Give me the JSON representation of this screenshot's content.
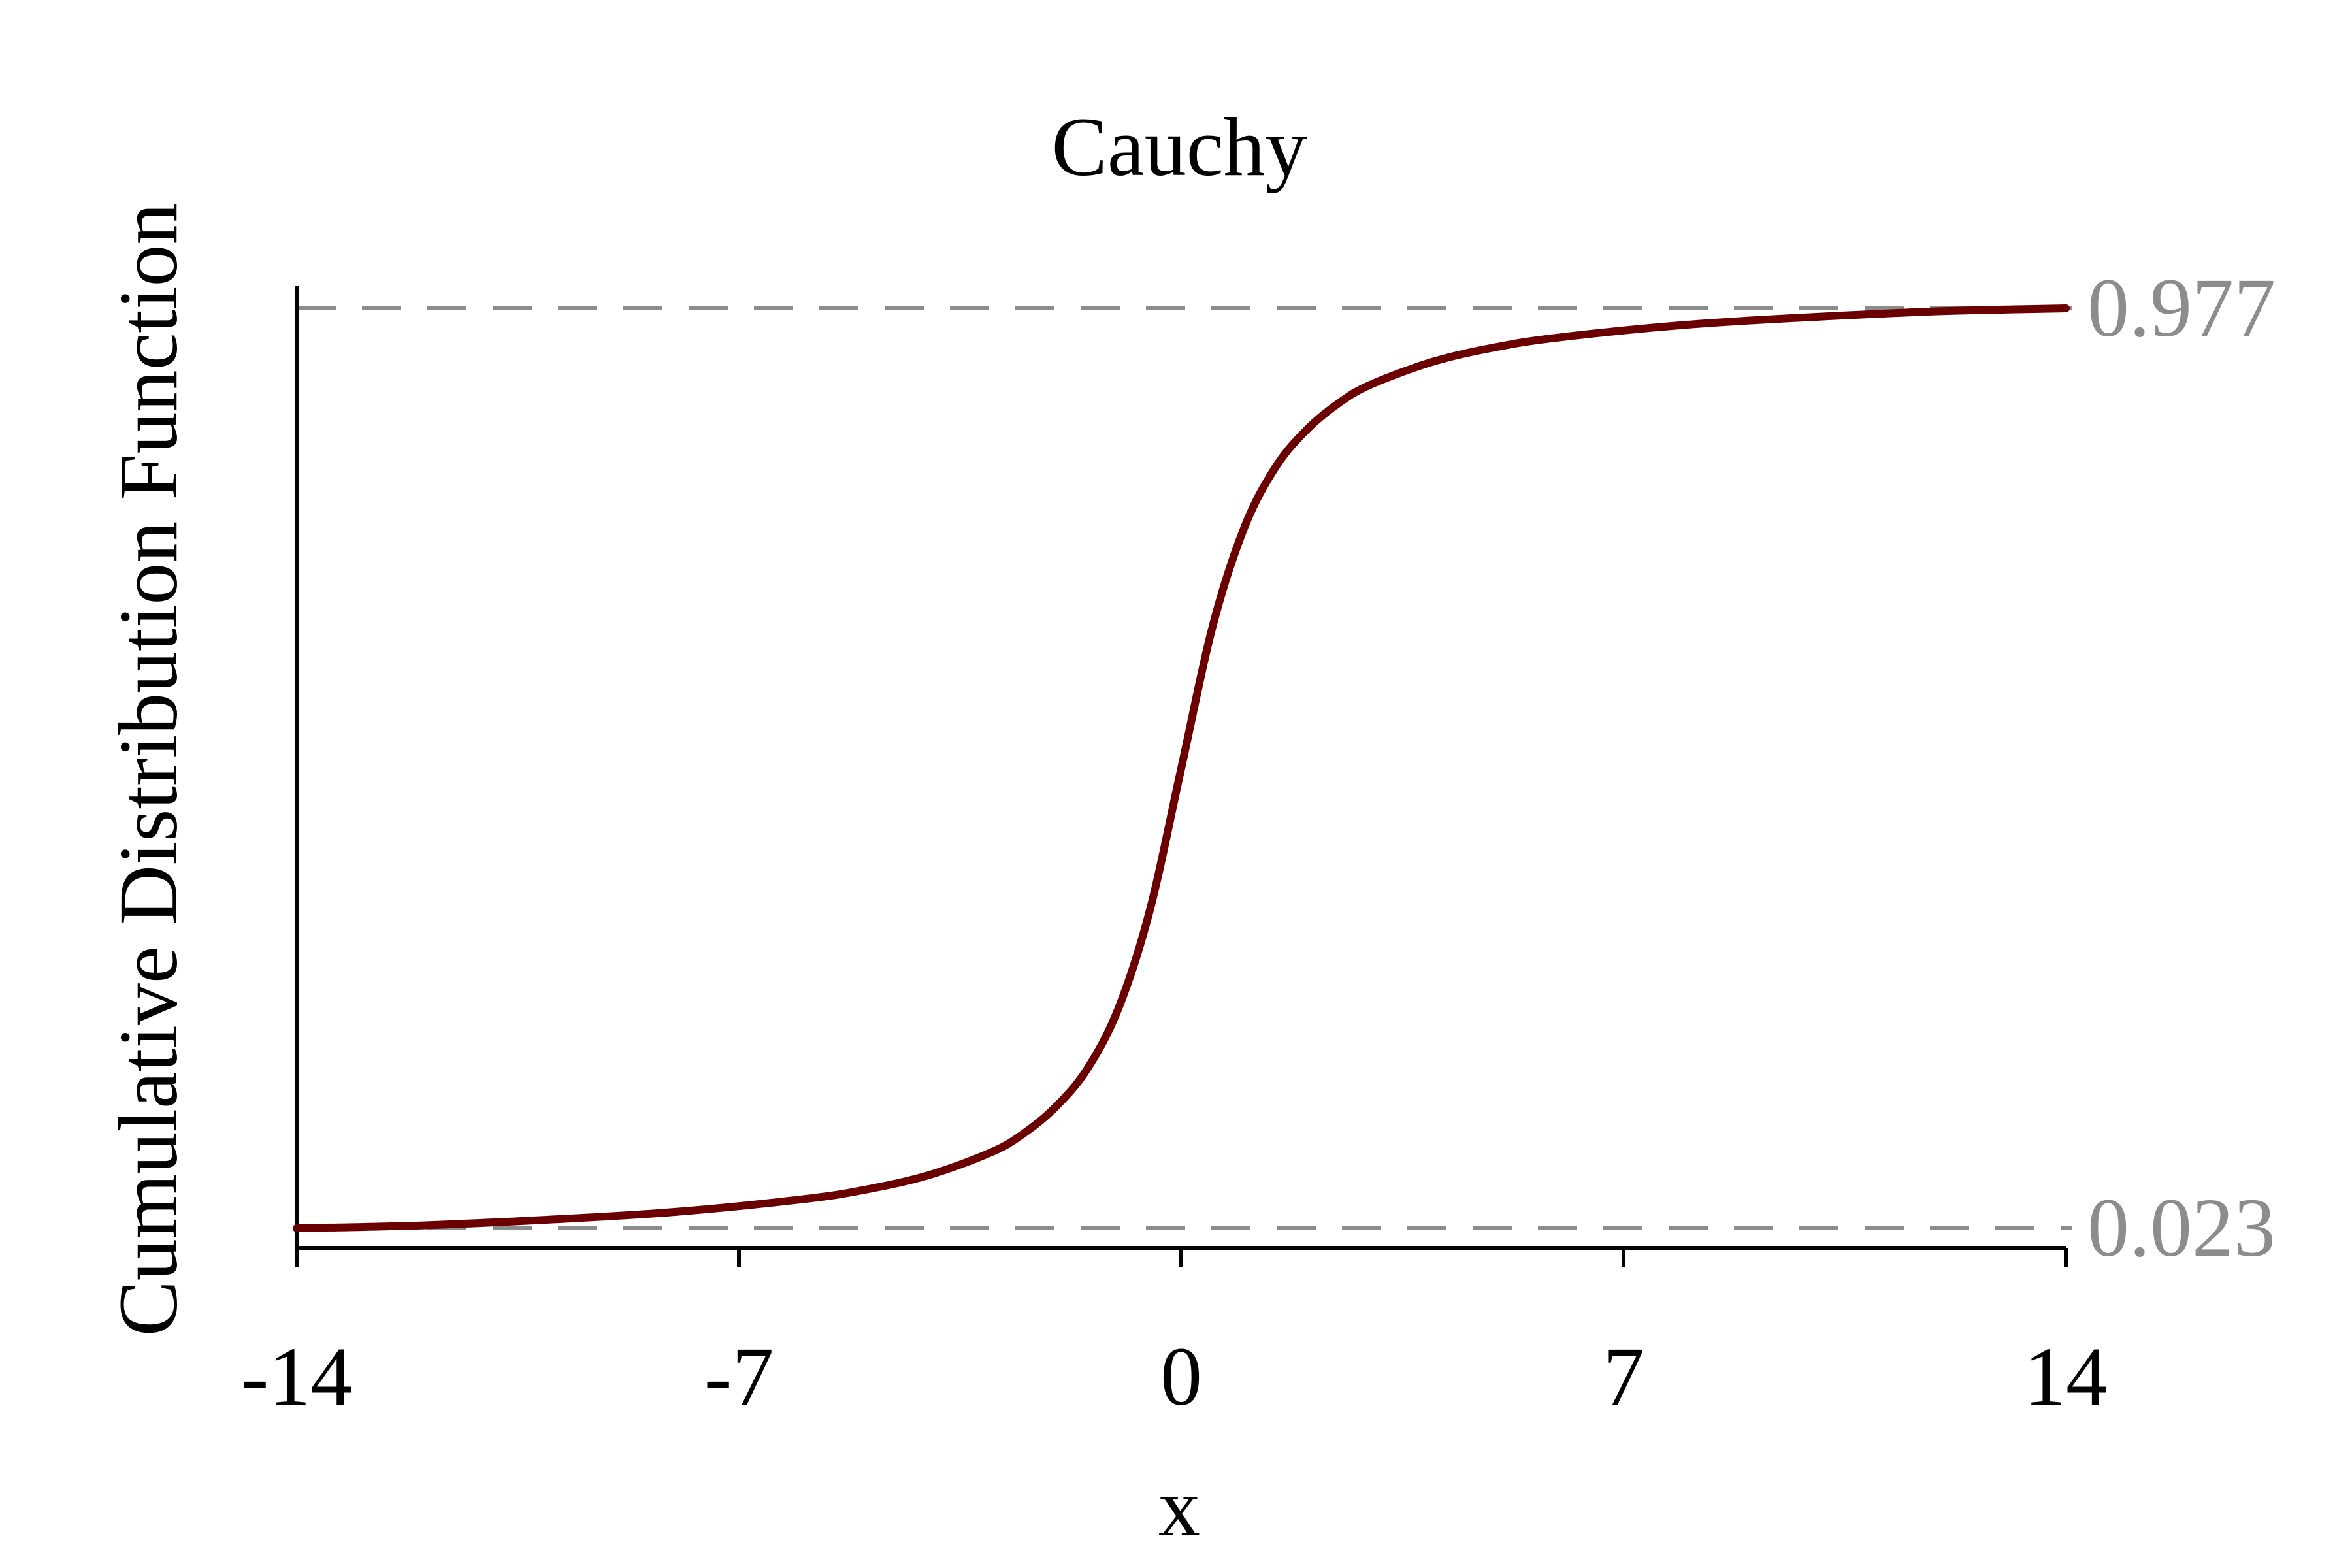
{
  "chart_data": {
    "type": "line",
    "title": "Cauchy",
    "xlabel": "x",
    "ylabel": "Cumulative Distribution Function",
    "xlim": [
      -14,
      14
    ],
    "ylim": [
      0.023,
      0.977
    ],
    "x_ticks": [
      {
        "value": -14,
        "label": "-14"
      },
      {
        "value": -7,
        "label": "-7"
      },
      {
        "value": 0,
        "label": "0"
      },
      {
        "value": 7,
        "label": "7"
      },
      {
        "value": 14,
        "label": "14"
      }
    ],
    "reference_lines": [
      {
        "value": 0.977,
        "label": "0.977"
      },
      {
        "value": 0.023,
        "label": "0.023"
      }
    ],
    "series": [
      {
        "x": [
          -14,
          -12,
          -10,
          -8,
          -6,
          -5,
          -4,
          -3,
          -2.5,
          -2,
          -1.5,
          -1,
          -0.5,
          0,
          0.5,
          1,
          1.5,
          2,
          2.5,
          3,
          4,
          5,
          6,
          8,
          10,
          12,
          14
        ],
        "y": [
          0.023,
          0.026,
          0.032,
          0.04,
          0.053,
          0.063,
          0.078,
          0.102,
          0.121,
          0.148,
          0.187,
          0.25,
          0.352,
          0.5,
          0.648,
          0.75,
          0.813,
          0.852,
          0.879,
          0.898,
          0.922,
          0.937,
          0.947,
          0.96,
          0.968,
          0.974,
          0.977
        ]
      }
    ],
    "colors": {
      "line": "#6b0000",
      "reference": "#8c8c8c",
      "axis": "#000000",
      "text": "#000000"
    },
    "grid": false,
    "legend": "none"
  }
}
